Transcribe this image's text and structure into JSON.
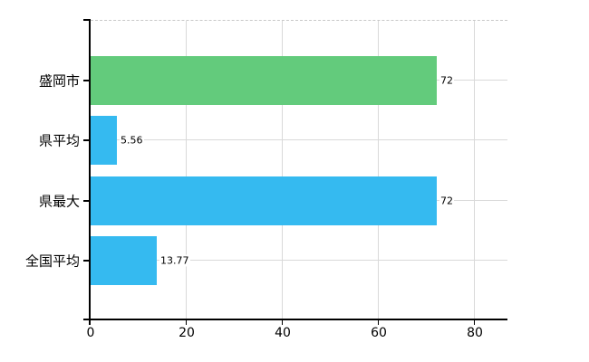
{
  "chart_data": {
    "type": "bar",
    "orientation": "horizontal",
    "title": "",
    "xlabel": "",
    "ylabel": "",
    "categories": [
      "盛岡市",
      "県平均",
      "県最大",
      "全国平均"
    ],
    "values": [
      72,
      5.56,
      72,
      13.77
    ],
    "value_labels": [
      "72",
      "5.56",
      "72",
      "13.77"
    ],
    "x_ticks": [
      "0",
      "20",
      "40",
      "60",
      "80"
    ],
    "x_tick_values": [
      0,
      20,
      40,
      60,
      80
    ],
    "xlim": [
      0,
      87
    ],
    "grid": true,
    "legend": false,
    "bar_colors": [
      "#63cb7c",
      "#35baf0",
      "#35baf0",
      "#35baf0"
    ],
    "colors": {
      "green_bar": "#63cb7c",
      "blue_bar": "#35baf0",
      "gridline": "#d9d9d9",
      "top_border": "#c9c9c9",
      "axis": "#000000",
      "background": "#ffffff",
      "text": "#000000"
    }
  }
}
